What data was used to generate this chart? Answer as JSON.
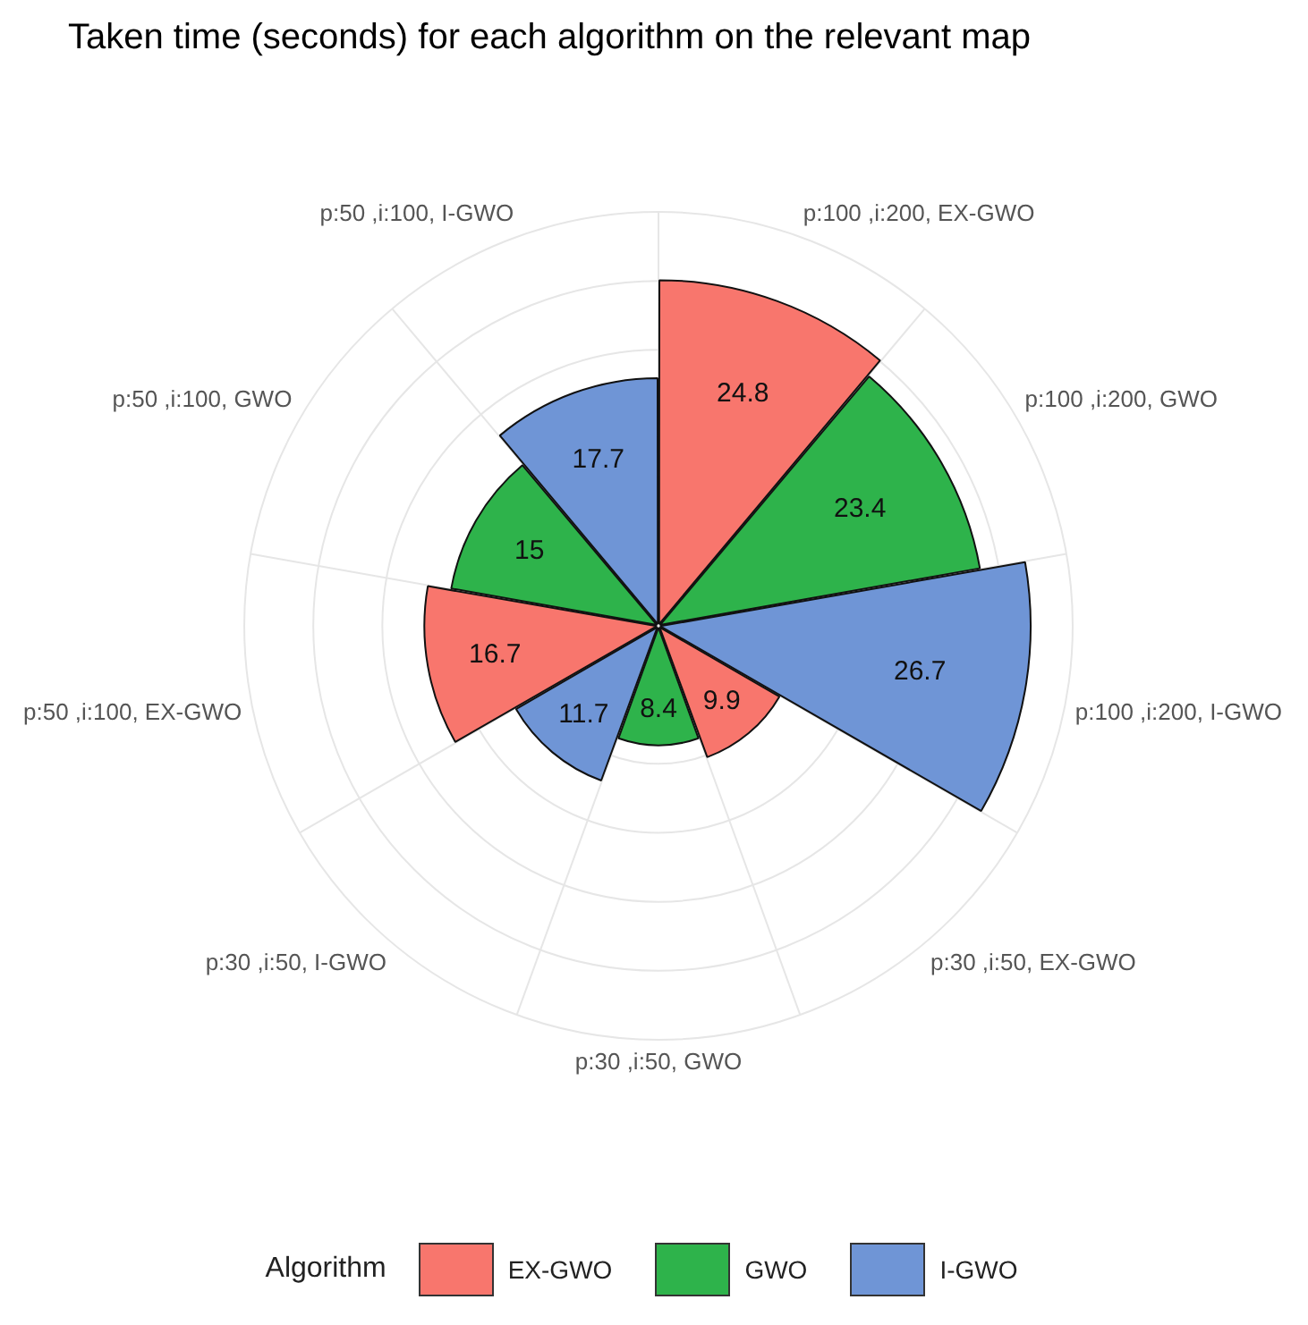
{
  "chart_data": {
    "type": "other",
    "title": "Taken time (seconds) for each algorithm on the relevant map",
    "categories": [
      "p:100 ,i:200, EX-GWO",
      "p:100 ,i:200, GWO",
      "p:100 ,i:200, I-GWO",
      "p:30 ,i:50, EX-GWO",
      "p:30 ,i:50, GWO",
      "p:30 ,i:50, I-GWO",
      "p:50 ,i:100, EX-GWO",
      "p:50 ,i:100, GWO",
      "p:50 ,i:100, I-GWO"
    ],
    "series": [
      {
        "name": "EX-GWO",
        "color": "#f8766d",
        "values": [
          24.8,
          null,
          null,
          9.9,
          null,
          null,
          16.7,
          null,
          null
        ]
      },
      {
        "name": "GWO",
        "color": "#2eb34b",
        "values": [
          null,
          23.4,
          null,
          null,
          8.4,
          null,
          null,
          15,
          null
        ]
      },
      {
        "name": "I-GWO",
        "color": "#6f95d6",
        "values": [
          null,
          null,
          26.7,
          null,
          null,
          11.7,
          null,
          null,
          17.7
        ]
      }
    ],
    "legend": "bottom",
    "legend_title": "Algorithm",
    "data_labels": true
  }
}
